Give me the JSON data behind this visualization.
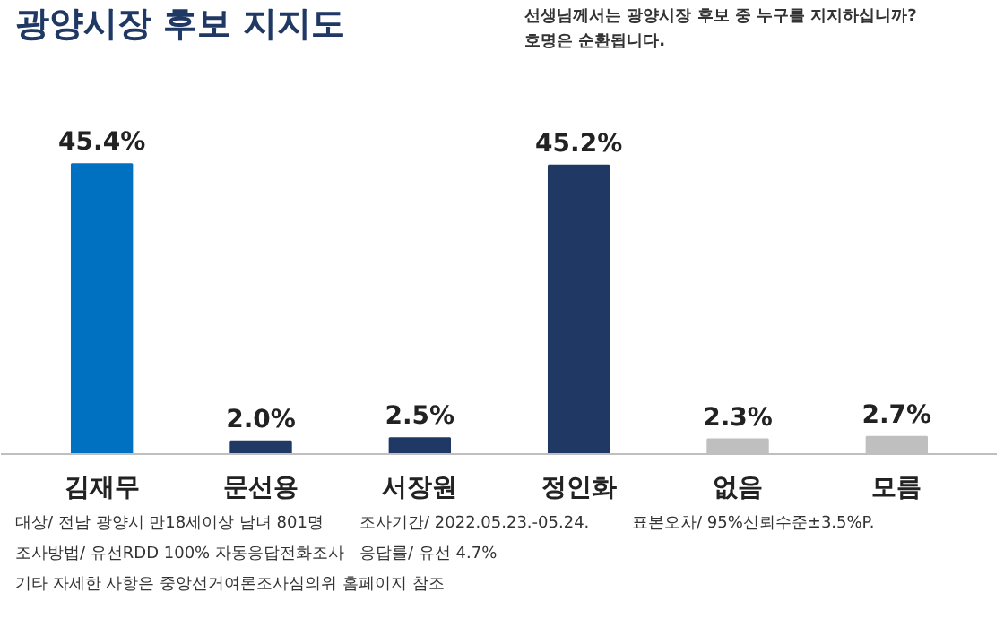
{
  "chart_data": {
    "type": "bar",
    "title": "광양시장 후보 지지도",
    "subtitle": "선생님께서는 광양시장 후보 중 누구를 지지하십니까?\n호명은 순환됩니다.",
    "categories": [
      "김재무",
      "문선용",
      "서장원",
      "정인화",
      "없음",
      "모름"
    ],
    "values": [
      45.4,
      2.0,
      2.5,
      45.2,
      2.3,
      2.7
    ],
    "colors": [
      "#0070c0",
      "#203864",
      "#203864",
      "#203864",
      "#bfbfbf",
      "#bfbfbf"
    ],
    "value_labels": [
      "45.4%",
      "2.0%",
      "2.5%",
      "45.2%",
      "2.3%",
      "2.7%"
    ],
    "annotations": [
      "대상/ 전남 광양시 만18세이상 남녀 801명",
      "조사기간/ 2022.05.23.-05.24.",
      "표본오차/ 95%신뢰수준±3.5%P.",
      "조사방법/ 유선RDD 100% 자동응답전화조사",
      "응답률/ 유선 4.7%",
      "기타 자세한 사항은 중앙선거여론조사심의위 홈페이지 참조"
    ]
  }
}
